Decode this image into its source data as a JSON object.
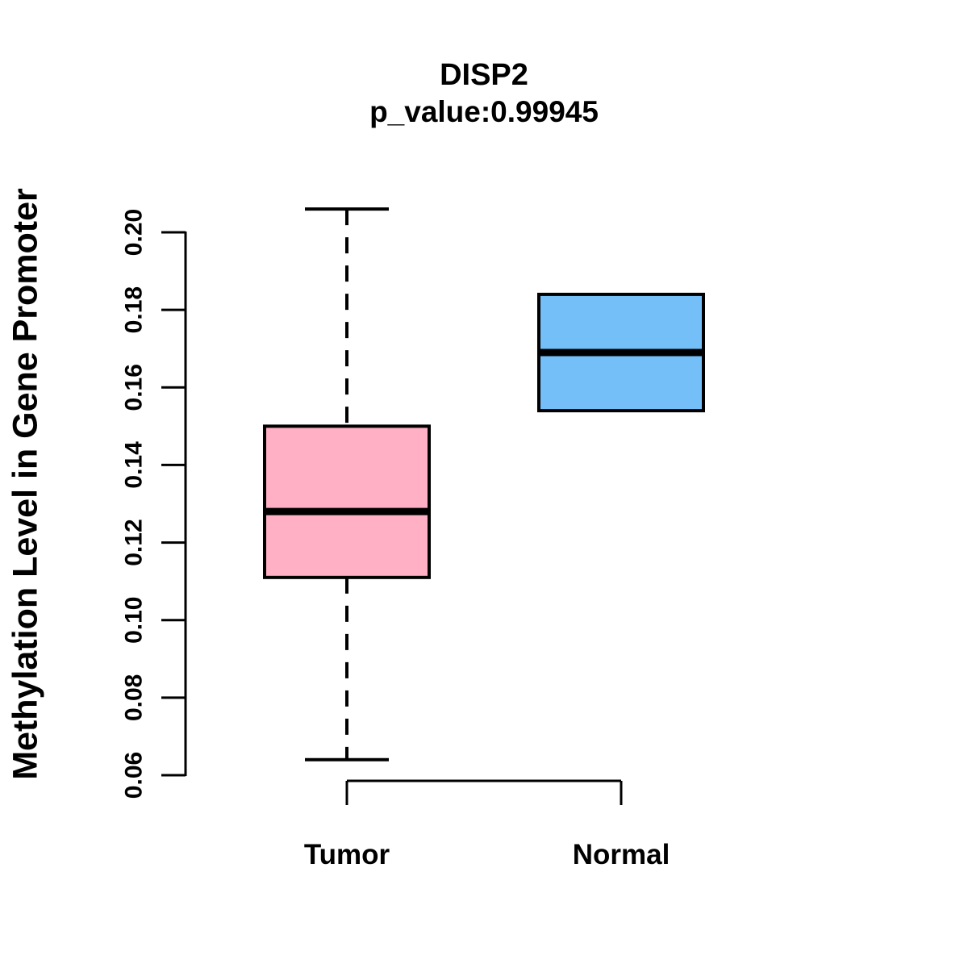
{
  "chart": {
    "title": "DISP2",
    "subtitle": "p_value:0.99945",
    "ylabel": "Methylation Level in Gene Promoter"
  },
  "chart_data": {
    "type": "boxplot",
    "title": "DISP2",
    "subtitle": "p_value:0.99945",
    "ylabel": "Methylation Level in Gene Promoter",
    "xlabel": "",
    "categories": [
      "Tumor",
      "Normal"
    ],
    "ylim": [
      0.06,
      0.206
    ],
    "yticks": [
      0.06,
      0.08,
      0.1,
      0.12,
      0.14,
      0.16,
      0.18,
      0.2
    ],
    "grid": false,
    "legend": "none",
    "series": [
      {
        "name": "Tumor",
        "color": "#FFB0C4",
        "whisker_low": 0.064,
        "q1": 0.111,
        "median": 0.128,
        "q3": 0.15,
        "whisker_high": 0.206,
        "whisker_line": "dashed"
      },
      {
        "name": "Normal",
        "color": "#74BFF7",
        "whisker_low": null,
        "q1": 0.154,
        "median": 0.169,
        "q3": 0.184,
        "whisker_high": null,
        "whisker_line": "dashed"
      }
    ]
  },
  "colors": {
    "axis": "#000000",
    "text": "#000000",
    "background": "#FFFFFF",
    "tumor_fill": "#FFB0C4",
    "normal_fill": "#74BFF7"
  }
}
